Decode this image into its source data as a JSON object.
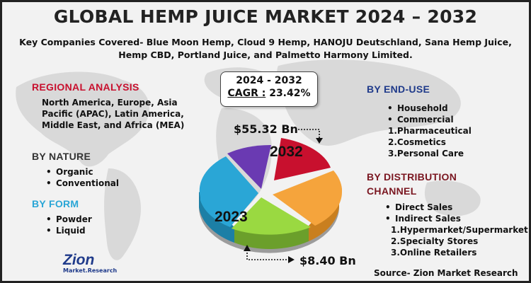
{
  "title": "GLOBAL HEMP JUICE MARKET 2024 – 2032",
  "subtitle_line1": "Key Companies Covered- Blue Moon Hemp, Cloud 9 Hemp, HANOJU Deutschland, Sana Hemp Juice,",
  "subtitle_line2": "Hemp CBD, Portland Juice, and Palmetto Harmony Limited.",
  "regional": {
    "heading": "REGIONAL ANALYSIS",
    "lines": [
      "North America, Europe, Asia",
      "Pacific (APAC), Latin America,",
      "Middle East, and Africa (MEA)"
    ]
  },
  "nature": {
    "heading": "BY NATURE",
    "items": [
      "Organic",
      "Conventional"
    ]
  },
  "form": {
    "heading": "BY FORM",
    "items": [
      "Powder",
      "Liquid"
    ]
  },
  "cagr": {
    "years": "2024 - 2032",
    "label": "CAGR :",
    "value": "23.42%"
  },
  "values": {
    "high": "$55.32 Bn",
    "low": "$8.40 Bn"
  },
  "years": {
    "start": "2023",
    "end": "2032"
  },
  "end_use": {
    "heading": "BY END-USE",
    "bullets": [
      "Household",
      "Commercial"
    ],
    "numbered": [
      "1.Pharmaceutical",
      "2.Cosmetics",
      "3.Personal Care"
    ]
  },
  "distribution": {
    "heading_line1": "BY DISTRIBUTION",
    "heading_line2": "CHANNEL",
    "bullets": [
      "Direct Sales",
      "Indirect Sales"
    ],
    "numbered": [
      "1.Hypermarket/Supermarket",
      "2.Specialty Stores",
      "3.Online Retailers"
    ]
  },
  "logo": {
    "name": "Zion",
    "sub": "Market.Research"
  },
  "source": "Source- Zion Market Research",
  "colors": {
    "red": "#c8102e",
    "purple": "#6a3ab2",
    "orange": "#f5a43c",
    "green": "#9ad941",
    "blue": "#2aa6d6"
  }
}
